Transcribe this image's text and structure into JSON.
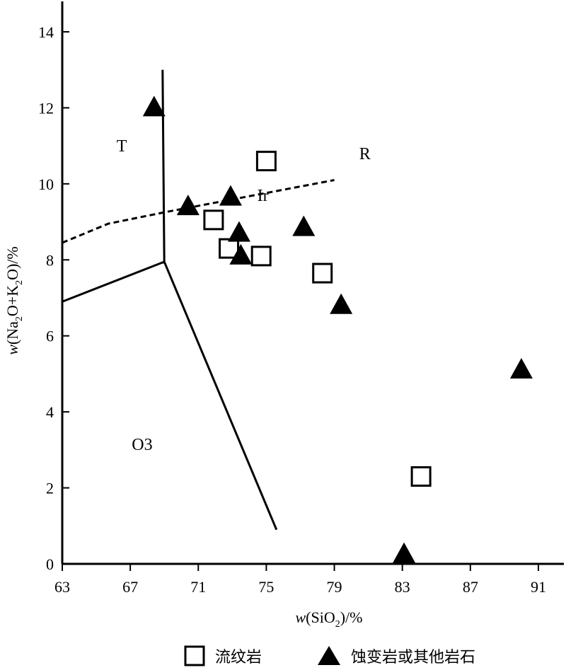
{
  "chart_data": {
    "type": "scatter",
    "title": "",
    "xlabel": {
      "prefix": "w",
      "open": "(SiO",
      "sub": "2",
      "close": ")/%"
    },
    "ylabel": {
      "prefix": "w",
      "p1": "(Na",
      "s1": "2",
      "p2": "O+K",
      "s2": "2",
      "p3": "O)/%"
    },
    "xlim": [
      63,
      92.5
    ],
    "ylim": [
      0,
      14.8
    ],
    "xticks": [
      63,
      67,
      71,
      75,
      79,
      83,
      87,
      91
    ],
    "yticks": [
      0,
      2,
      4,
      6,
      8,
      10,
      12,
      14
    ],
    "series": [
      {
        "name": "流纹岩",
        "marker": "open-square",
        "points": [
          [
            75.0,
            10.6
          ],
          [
            71.9,
            9.05
          ],
          [
            72.8,
            8.3
          ],
          [
            74.7,
            8.1
          ],
          [
            78.3,
            7.65
          ],
          [
            84.1,
            2.3
          ]
        ]
      },
      {
        "name": "蚀变岩或其他岩石",
        "marker": "filled-triangle",
        "points": [
          [
            68.4,
            12.0
          ],
          [
            70.4,
            9.4
          ],
          [
            72.9,
            9.65
          ],
          [
            73.4,
            8.7
          ],
          [
            73.5,
            8.1
          ],
          [
            77.2,
            8.85
          ],
          [
            79.4,
            6.8
          ],
          [
            90.0,
            5.1
          ],
          [
            83.1,
            0.25
          ]
        ]
      }
    ],
    "boundaries": [
      {
        "name": "T-R",
        "style": "solid",
        "points": [
          [
            68.9,
            13.0
          ],
          [
            69.0,
            7.9
          ]
        ]
      },
      {
        "name": "upper-left",
        "style": "solid",
        "points": [
          [
            63.0,
            6.9
          ],
          [
            69.0,
            7.95
          ]
        ]
      },
      {
        "name": "O3-right",
        "style": "solid",
        "points": [
          [
            69.0,
            7.95
          ],
          [
            75.6,
            0.9
          ]
        ]
      },
      {
        "name": "alkaline-divide",
        "style": "dashed",
        "points": [
          [
            63.0,
            8.45
          ],
          [
            65.7,
            8.95
          ],
          [
            69.0,
            9.25
          ],
          [
            79.0,
            10.1
          ]
        ]
      }
    ],
    "regions": [
      {
        "label": "T",
        "x": 66.5,
        "y": 10.85
      },
      {
        "label": "R",
        "x": 80.8,
        "y": 10.65
      },
      {
        "label": "Ir",
        "x": 74.8,
        "y": 9.55
      },
      {
        "label": "O3",
        "x": 67.7,
        "y": 3.0
      }
    ]
  }
}
